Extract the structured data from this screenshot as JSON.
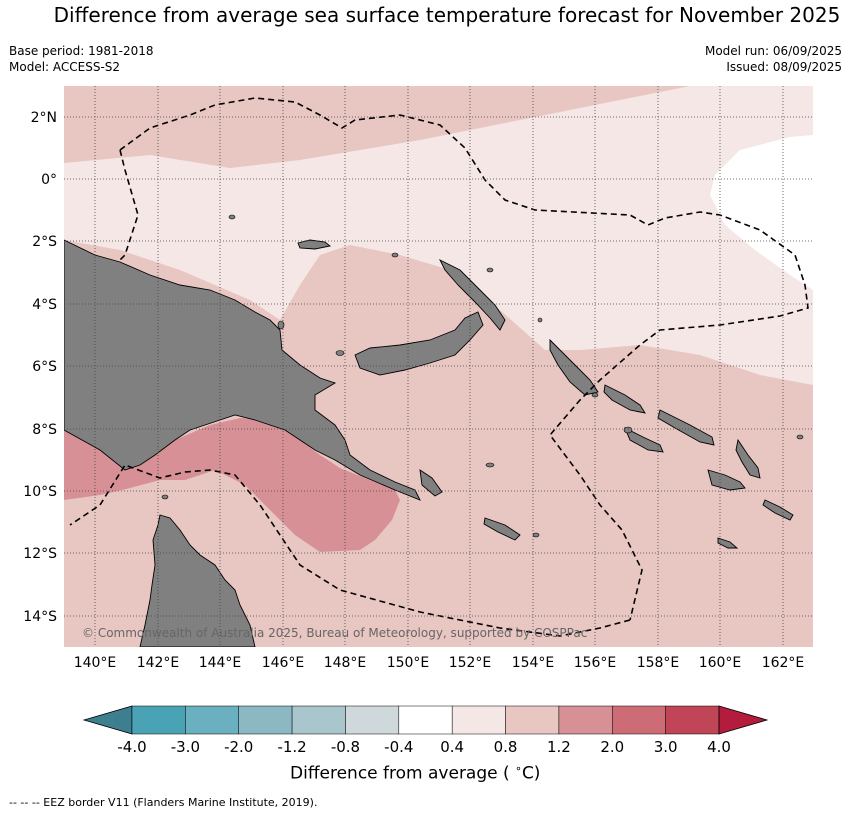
{
  "header": {
    "title": "Difference from average sea surface temperature forecast for November 2025",
    "base_period": "Base period: 1981-2018",
    "model": "Model: ACCESS-S2",
    "model_run": "Model run: 06/09/2025",
    "issued": "Issued: 08/09/2025"
  },
  "map": {
    "lat_labels": [
      "2°N",
      "0°",
      "2°S",
      "4°S",
      "6°S",
      "8°S",
      "10°S",
      "12°S",
      "14°S"
    ],
    "lon_labels": [
      "140°E",
      "142°E",
      "144°E",
      "146°E",
      "148°E",
      "150°E",
      "152°E",
      "154°E",
      "156°E",
      "158°E",
      "160°E",
      "162°E"
    ],
    "copyright": "© Commonwealth of Australia 2025, Bureau of Meteorology, supported by COSPPac",
    "land_color": "#808080",
    "grid": true
  },
  "colorbar": {
    "ticks": [
      "-4.0",
      "-3.0",
      "-2.0",
      "-1.2",
      "-0.8",
      "-0.4",
      "0.4",
      "0.8",
      "1.2",
      "2.0",
      "3.0",
      "4.0"
    ],
    "colors": [
      "#3d7f8f",
      "#4aa3b5",
      "#6ab0c0",
      "#8cb8c4",
      "#a8c6cc",
      "#cfd8db",
      "#ffffff",
      "#f5e7e5",
      "#e8c6c2",
      "#d79096",
      "#cd6c74",
      "#c04556",
      "#b31c3c"
    ],
    "label": "Difference from average (",
    "label_unit": "C)",
    "degree": "∘"
  },
  "footer": {
    "legend_text": "--  --  -- EEZ border V11 (Flanders Marine Institute, 2019)."
  }
}
